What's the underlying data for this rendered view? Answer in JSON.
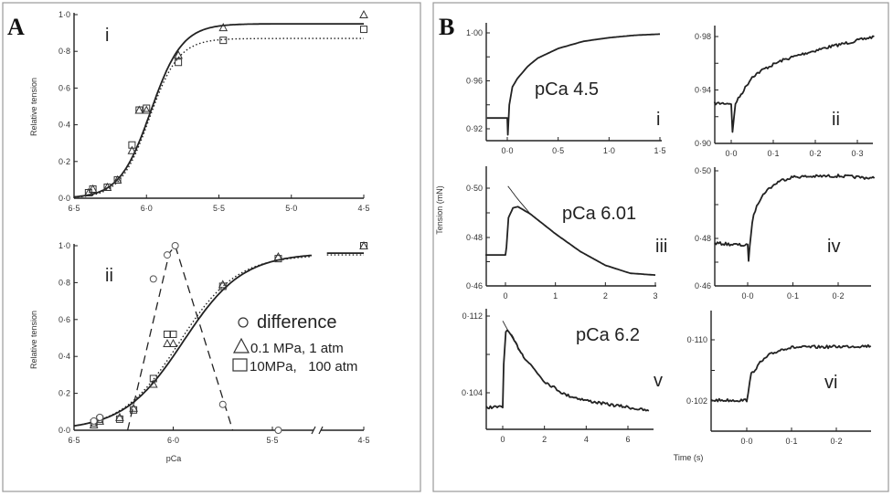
{
  "panels": {
    "a_label": "A",
    "b_label": "B"
  },
  "a": {
    "y_label": "Relative tension",
    "x_label": "pCa",
    "legend": [
      {
        "marker": "circle",
        "label": "difference"
      },
      {
        "marker": "triangle",
        "label": "0.1 MPa, 1 atm"
      },
      {
        "marker": "square",
        "label": "10MPa,   100 atm"
      }
    ]
  },
  "b": {
    "y_label": "Tension (mN)",
    "x_label": "Time (s)"
  },
  "chart_data": [
    {
      "id": "A-i",
      "type": "scatter",
      "panel_label": "i",
      "annotation": "",
      "xlim": [
        6.5,
        4.5
      ],
      "ylim": [
        0,
        1.0
      ],
      "grid": false,
      "x_ticks": [
        {
          "v": 6.5,
          "label": "6·5"
        },
        {
          "v": 6.0,
          "label": "6·0"
        },
        {
          "v": 5.5,
          "label": "5·5"
        },
        {
          "v": 5.0,
          "label": "5·0"
        },
        {
          "v": 4.5,
          "label": "4·5"
        }
      ],
      "y_ticks": [
        {
          "v": 0,
          "label": "0·0"
        },
        {
          "v": 0.2,
          "label": "0·2"
        },
        {
          "v": 0.4,
          "label": "0·4"
        },
        {
          "v": 0.6,
          "label": "0·6"
        },
        {
          "v": 0.8,
          "label": "0·8"
        },
        {
          "v": 1.0,
          "label": "1·0"
        }
      ],
      "series": [
        {
          "name": "0.1 MPa, 1 atm",
          "marker": "triangle",
          "line": "solid",
          "fit": {
            "max": 0.95,
            "pCa50": 5.97,
            "n": 4.0
          },
          "points": [
            [
              6.4,
              0.03
            ],
            [
              6.37,
              0.05
            ],
            [
              6.27,
              0.06
            ],
            [
              6.2,
              0.1
            ],
            [
              6.1,
              0.26
            ],
            [
              6.05,
              0.48
            ],
            [
              6.0,
              0.48
            ],
            [
              5.78,
              0.78
            ],
            [
              5.47,
              0.93
            ],
            [
              4.5,
              1.0
            ]
          ]
        },
        {
          "name": "10MPa, 100 atm",
          "marker": "square",
          "line": "dotted",
          "fit": {
            "max": 0.87,
            "pCa50": 5.98,
            "n": 4.3
          },
          "points": [
            [
              6.4,
              0.03
            ],
            [
              6.37,
              0.05
            ],
            [
              6.27,
              0.06
            ],
            [
              6.2,
              0.1
            ],
            [
              6.1,
              0.29
            ],
            [
              6.05,
              0.48
            ],
            [
              6.0,
              0.49
            ],
            [
              5.78,
              0.74
            ],
            [
              5.47,
              0.86
            ],
            [
              4.5,
              0.92
            ]
          ]
        }
      ]
    },
    {
      "id": "A-ii",
      "type": "scatter",
      "panel_label": "ii",
      "annotation": "",
      "xlim": [
        6.5,
        4.5
      ],
      "ylim": [
        0,
        1.0
      ],
      "grid": false,
      "axis_break": true,
      "x_ticks": [
        {
          "v": 6.5,
          "label": "6·5"
        },
        {
          "v": 6.0,
          "label": "6·0"
        },
        {
          "v": 5.5,
          "label": "5·5"
        },
        {
          "v": 4.5,
          "label": "4·5"
        }
      ],
      "y_ticks": [
        {
          "v": 0,
          "label": "0·0"
        },
        {
          "v": 0.2,
          "label": "0·2"
        },
        {
          "v": 0.4,
          "label": "0·4"
        },
        {
          "v": 0.6,
          "label": "0·6"
        },
        {
          "v": 0.8,
          "label": "0·8"
        },
        {
          "v": 1.0,
          "label": "1·0"
        }
      ],
      "series": [
        {
          "name": "0.1 MPa, 1 atm",
          "marker": "triangle",
          "line": "solid",
          "fit": {
            "max": 0.96,
            "pCa50": 5.95,
            "n": 2.9
          },
          "points": [
            [
              6.4,
              0.03
            ],
            [
              6.37,
              0.05
            ],
            [
              6.27,
              0.07
            ],
            [
              6.2,
              0.12
            ],
            [
              6.1,
              0.25
            ],
            [
              6.03,
              0.47
            ],
            [
              6.0,
              0.47
            ],
            [
              5.75,
              0.79
            ],
            [
              5.47,
              0.94
            ],
            [
              4.5,
              1.0
            ]
          ]
        },
        {
          "name": "10MPa, 100 atm",
          "marker": "square",
          "line": "dotted",
          "fit": {
            "max": 0.95,
            "pCa50": 5.97,
            "n": 3.0
          },
          "points": [
            [
              6.4,
              0.04
            ],
            [
              6.37,
              0.06
            ],
            [
              6.27,
              0.06
            ],
            [
              6.2,
              0.11
            ],
            [
              6.1,
              0.28
            ],
            [
              6.03,
              0.52
            ],
            [
              6.0,
              0.52
            ],
            [
              5.75,
              0.78
            ],
            [
              5.47,
              0.93
            ],
            [
              4.5,
              1.0
            ]
          ]
        },
        {
          "name": "difference",
          "marker": "circle",
          "line": "dashed",
          "line_points": [
            [
              6.23,
              0
            ],
            [
              6.02,
              0.96
            ],
            [
              5.99,
              1.0
            ],
            [
              5.7,
              0
            ]
          ],
          "points": [
            [
              6.4,
              0.05
            ],
            [
              6.37,
              0.07
            ],
            [
              6.1,
              0.82
            ],
            [
              6.03,
              0.95
            ],
            [
              5.99,
              1.0
            ],
            [
              5.75,
              0.14
            ],
            [
              5.47,
              0.0
            ]
          ]
        }
      ]
    },
    {
      "id": "B-i",
      "type": "line",
      "panel_label": "i",
      "annotation": "pCa 4.5",
      "xlim": [
        -0.2,
        1.5
      ],
      "ylim": [
        0.91,
        1.008
      ],
      "x_ticks": [
        {
          "v": 0,
          "label": "0·0"
        },
        {
          "v": 0.5,
          "label": "0·5"
        },
        {
          "v": 1.0,
          "label": "1·0"
        },
        {
          "v": 1.5,
          "label": "1·5"
        }
      ],
      "y_ticks": [
        {
          "v": 0.92,
          "label": "0·92"
        },
        {
          "v": 0.94,
          "label": ""
        },
        {
          "v": 0.96,
          "label": "0·96"
        },
        {
          "v": 0.98,
          "label": ""
        },
        {
          "v": 1.0,
          "label": "1·00"
        }
      ],
      "series": [
        {
          "line": "solid",
          "noisy": false,
          "points": [
            [
              -0.2,
              0.929
            ],
            [
              0,
              0.929
            ],
            [
              0.005,
              0.915
            ],
            [
              0.02,
              0.94
            ],
            [
              0.05,
              0.955
            ],
            [
              0.1,
              0.962
            ],
            [
              0.2,
              0.972
            ],
            [
              0.3,
              0.979
            ],
            [
              0.5,
              0.987
            ],
            [
              0.75,
              0.993
            ],
            [
              1.0,
              0.996
            ],
            [
              1.25,
              0.998
            ],
            [
              1.5,
              0.999
            ]
          ]
        }
      ]
    },
    {
      "id": "B-ii",
      "type": "line",
      "panel_label": "ii",
      "annotation": "",
      "xlim": [
        -0.04,
        0.34
      ],
      "ylim": [
        0.9,
        0.985
      ],
      "x_ticks": [
        {
          "v": 0,
          "label": "0·0"
        },
        {
          "v": 0.1,
          "label": "0·1"
        },
        {
          "v": 0.2,
          "label": "0·2"
        },
        {
          "v": 0.3,
          "label": "0·3"
        }
      ],
      "y_ticks": [
        {
          "v": 0.9,
          "label": "0·90"
        },
        {
          "v": 0.92,
          "label": ""
        },
        {
          "v": 0.94,
          "label": "0·94"
        },
        {
          "v": 0.96,
          "label": ""
        },
        {
          "v": 0.98,
          "label": "0·98"
        }
      ],
      "series": [
        {
          "line": "solid",
          "noisy": true,
          "points": [
            [
              -0.04,
              0.93
            ],
            [
              0,
              0.93
            ],
            [
              0.003,
              0.908
            ],
            [
              0.01,
              0.93
            ],
            [
              0.03,
              0.94
            ],
            [
              0.05,
              0.95
            ],
            [
              0.08,
              0.956
            ],
            [
              0.12,
              0.962
            ],
            [
              0.17,
              0.967
            ],
            [
              0.23,
              0.972
            ],
            [
              0.3,
              0.977
            ],
            [
              0.34,
              0.98
            ]
          ]
        }
      ]
    },
    {
      "id": "B-iii",
      "type": "line",
      "panel_label": "iii",
      "annotation": "pCa 6.01",
      "xlim": [
        -0.4,
        3.05
      ],
      "ylim": [
        0.46,
        0.507
      ],
      "x_ticks": [
        {
          "v": 0,
          "label": "0"
        },
        {
          "v": 1,
          "label": "1"
        },
        {
          "v": 2,
          "label": "2"
        },
        {
          "v": 3,
          "label": "3"
        }
      ],
      "y_ticks": [
        {
          "v": 0.46,
          "label": "0·46"
        },
        {
          "v": 0.47,
          "label": ""
        },
        {
          "v": 0.48,
          "label": "0·48"
        },
        {
          "v": 0.49,
          "label": ""
        },
        {
          "v": 0.5,
          "label": "0·50"
        }
      ],
      "series": [
        {
          "line": "solid",
          "noisy": false,
          "points": [
            [
              -0.4,
              0.4728
            ],
            [
              0,
              0.4728
            ],
            [
              0.02,
              0.476
            ],
            [
              0.06,
              0.488
            ],
            [
              0.15,
              0.492
            ],
            [
              0.25,
              0.4925
            ],
            [
              0.5,
              0.4895
            ],
            [
              1.0,
              0.4815
            ],
            [
              1.5,
              0.4742
            ],
            [
              2.0,
              0.4685
            ],
            [
              2.5,
              0.4652
            ],
            [
              3.0,
              0.4645
            ]
          ]
        },
        {
          "line": "thin",
          "noisy": false,
          "points": [
            [
              0.05,
              0.5008
            ],
            [
              0.25,
              0.4955
            ],
            [
              0.5,
              0.4895
            ]
          ]
        }
      ]
    },
    {
      "id": "B-iv",
      "type": "line",
      "panel_label": "iv",
      "annotation": "",
      "xlim": [
        -0.073,
        0.28
      ],
      "ylim": [
        0.46,
        0.501
      ],
      "x_ticks": [
        {
          "v": 0,
          "label": "0·0"
        },
        {
          "v": 0.1,
          "label": "0·1"
        },
        {
          "v": 0.2,
          "label": "0·2"
        }
      ],
      "y_ticks": [
        {
          "v": 0.46,
          "label": "0·46"
        },
        {
          "v": 0.47,
          "label": ""
        },
        {
          "v": 0.48,
          "label": "0·48"
        },
        {
          "v": 0.49,
          "label": ""
        },
        {
          "v": 0.5,
          "label": "0·50"
        }
      ],
      "series": [
        {
          "line": "solid",
          "noisy": true,
          "points": [
            [
              -0.073,
              0.478
            ],
            [
              0,
              0.477
            ],
            [
              0.002,
              0.471
            ],
            [
              0.01,
              0.485
            ],
            [
              0.02,
              0.49
            ],
            [
              0.04,
              0.494
            ],
            [
              0.07,
              0.497
            ],
            [
              0.1,
              0.4982
            ],
            [
              0.2,
              0.4985
            ],
            [
              0.28,
              0.4978
            ]
          ]
        }
      ]
    },
    {
      "id": "B-v",
      "type": "line",
      "panel_label": "v",
      "annotation": "pCa 6.2",
      "xlim": [
        -0.79,
        7.2
      ],
      "ylim": [
        0.1002,
        0.1128
      ],
      "x_ticks": [
        {
          "v": 0,
          "label": "0"
        },
        {
          "v": 2,
          "label": "2"
        },
        {
          "v": 4,
          "label": "4"
        },
        {
          "v": 6,
          "label": "6"
        }
      ],
      "y_ticks": [
        {
          "v": 0.104,
          "label": "0·104"
        },
        {
          "v": 0.108,
          "label": ""
        },
        {
          "v": 0.112,
          "label": "0·112"
        }
      ],
      "series": [
        {
          "line": "solid",
          "noisy": true,
          "points": [
            [
              -0.79,
              0.1025
            ],
            [
              0,
              0.1025
            ],
            [
              0.05,
              0.107
            ],
            [
              0.15,
              0.1105
            ],
            [
              0.3,
              0.1103
            ],
            [
              1.0,
              0.1078
            ],
            [
              2.0,
              0.1052
            ],
            [
              3.0,
              0.1038
            ],
            [
              4.0,
              0.1032
            ],
            [
              5.0,
              0.1028
            ],
            [
              6.0,
              0.1025
            ],
            [
              7.0,
              0.1021
            ]
          ]
        },
        {
          "line": "thin",
          "noisy": false,
          "points": [
            [
              0.0,
              0.1115
            ],
            [
              0.3,
              0.1103
            ],
            [
              1.0,
              0.1078
            ]
          ]
        }
      ]
    },
    {
      "id": "B-vi",
      "type": "line",
      "panel_label": "vi",
      "annotation": "",
      "xlim": [
        -0.08,
        0.277
      ],
      "ylim": [
        0.0981,
        0.1138
      ],
      "x_ticks": [
        {
          "v": 0,
          "label": "0·0"
        },
        {
          "v": 0.1,
          "label": "0·1"
        },
        {
          "v": 0.2,
          "label": "0·2"
        }
      ],
      "y_ticks": [
        {
          "v": 0.102,
          "label": "0·102"
        },
        {
          "v": 0.106,
          "label": ""
        },
        {
          "v": 0.11,
          "label": "0·110"
        }
      ],
      "series": [
        {
          "line": "solid",
          "noisy": true,
          "points": [
            [
              -0.08,
              0.1021
            ],
            [
              0,
              0.1021
            ],
            [
              0.01,
              0.1055
            ],
            [
              0.03,
              0.107
            ],
            [
              0.05,
              0.108
            ],
            [
              0.08,
              0.1088
            ],
            [
              0.1,
              0.109
            ],
            [
              0.2,
              0.1091
            ],
            [
              0.277,
              0.1092
            ]
          ]
        }
      ]
    }
  ]
}
